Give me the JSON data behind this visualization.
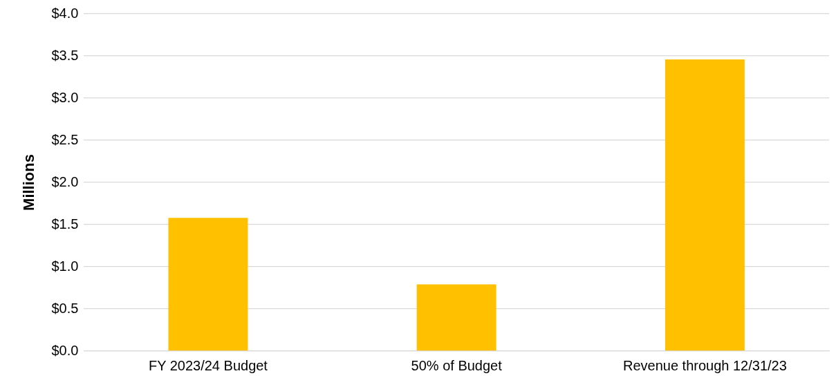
{
  "chart_data": {
    "type": "bar",
    "ylabel": "Millions",
    "categories": [
      "FY 2023/24 Budget",
      "50% of Budget",
      "Revenue through 12/31/23"
    ],
    "values": [
      1.58,
      0.79,
      3.46
    ],
    "color": "#ffc000",
    "ylim": [
      0,
      4
    ],
    "yticks": [
      {
        "value": 0,
        "label": "$0.0"
      },
      {
        "value": 0.5,
        "label": "$0.5"
      },
      {
        "value": 1,
        "label": "$1.0"
      },
      {
        "value": 1.5,
        "label": "$1.5"
      },
      {
        "value": 2,
        "label": "$2.0"
      },
      {
        "value": 2.5,
        "label": "$2.5"
      },
      {
        "value": 3,
        "label": "$3.0"
      },
      {
        "value": 3.5,
        "label": "$3.5"
      },
      {
        "value": 4,
        "label": "$4.0"
      }
    ],
    "grid": "y",
    "legend": false
  }
}
